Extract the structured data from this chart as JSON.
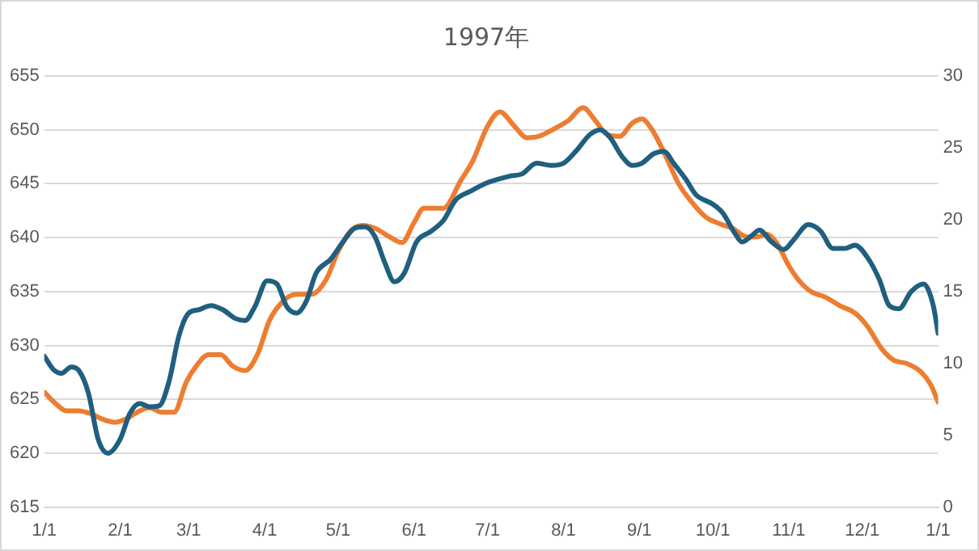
{
  "chart_data": {
    "type": "line",
    "title": "1997年",
    "xlim": [
      "1997-01-01",
      "1998-01-01"
    ],
    "xticks": [
      {
        "value": "1997-01-01",
        "label": "1/1"
      },
      {
        "value": "1997-02-01",
        "label": "2/1"
      },
      {
        "value": "1997-03-01",
        "label": "3/1"
      },
      {
        "value": "1997-04-01",
        "label": "4/1"
      },
      {
        "value": "1997-05-01",
        "label": "5/1"
      },
      {
        "value": "1997-06-01",
        "label": "6/1"
      },
      {
        "value": "1997-07-01",
        "label": "7/1"
      },
      {
        "value": "1997-08-01",
        "label": "8/1"
      },
      {
        "value": "1997-09-01",
        "label": "9/1"
      },
      {
        "value": "1997-10-01",
        "label": "10/1"
      },
      {
        "value": "1997-11-01",
        "label": "11/1"
      },
      {
        "value": "1997-12-01",
        "label": "12/1"
      },
      {
        "value": "1998-01-01",
        "label": "1/1"
      }
    ],
    "ylim": [
      615,
      655
    ],
    "yticks": [
      615,
      620,
      625,
      630,
      635,
      640,
      645,
      650,
      655
    ],
    "y2lim": [
      0,
      30
    ],
    "y2ticks": [
      0,
      5,
      10,
      15,
      20,
      25,
      30
    ],
    "grid": "y",
    "legend": false,
    "marker": "none",
    "line_style": "solid",
    "series": [
      {
        "color": "#1f5f7f",
        "x": [
          "1997-01-01",
          "1997-01-05",
          "1997-01-08",
          "1997-01-12",
          "1997-01-15",
          "1997-01-19",
          "1997-01-23",
          "1997-01-27",
          "1997-02-01",
          "1997-02-05",
          "1997-02-09",
          "1997-02-13",
          "1997-02-17",
          "1997-02-21",
          "1997-02-25",
          "1997-03-01",
          "1997-03-05",
          "1997-03-10",
          "1997-03-15",
          "1997-03-20",
          "1997-03-24",
          "1997-03-28",
          "1997-04-02",
          "1997-04-06",
          "1997-04-10",
          "1997-04-14",
          "1997-04-18",
          "1997-04-22",
          "1997-04-28",
          "1997-05-03",
          "1997-05-08",
          "1997-05-12",
          "1997-05-16",
          "1997-05-20",
          "1997-05-24",
          "1997-05-28",
          "1997-06-02",
          "1997-06-08",
          "1997-06-13",
          "1997-06-18",
          "1997-06-24",
          "1997-07-01",
          "1997-07-05",
          "1997-07-10",
          "1997-07-15",
          "1997-07-21",
          "1997-07-27",
          "1997-08-01",
          "1997-08-06",
          "1997-08-12",
          "1997-08-16",
          "1997-08-20",
          "1997-08-25",
          "1997-08-29",
          "1997-09-02",
          "1997-09-07",
          "1997-09-11",
          "1997-09-15",
          "1997-09-20",
          "1997-09-24",
          "1997-10-01",
          "1997-10-05",
          "1997-10-10",
          "1997-10-13",
          "1997-10-17",
          "1997-10-20",
          "1997-10-25",
          "1997-10-30",
          "1997-11-03",
          "1997-11-09",
          "1997-11-14",
          "1997-11-19",
          "1997-11-24",
          "1997-11-28",
          "1997-12-03",
          "1997-12-08",
          "1997-12-12",
          "1997-12-16",
          "1997-12-21",
          "1997-12-26",
          "1997-12-30",
          "1998-01-01"
        ],
        "values": [
          629.0,
          627.7,
          627.4,
          628.0,
          627.7,
          625.6,
          621.3,
          620.0,
          621.3,
          623.7,
          624.6,
          624.3,
          624.4,
          626.7,
          630.9,
          633.0,
          633.3,
          633.7,
          633.3,
          632.5,
          632.3,
          633.6,
          636.0,
          635.7,
          633.6,
          633.0,
          634.1,
          636.7,
          638.0,
          639.6,
          640.9,
          641.0,
          640.1,
          637.7,
          635.9,
          636.7,
          639.6,
          640.6,
          641.6,
          643.5,
          644.3,
          645.1,
          645.4,
          645.7,
          645.9,
          646.9,
          646.7,
          646.9,
          648.0,
          649.6,
          650.0,
          649.3,
          647.5,
          646.7,
          646.9,
          647.8,
          648.0,
          646.9,
          645.4,
          644.0,
          643.1,
          642.3,
          640.4,
          639.6,
          640.2,
          640.7,
          639.6,
          638.9,
          639.8,
          641.2,
          640.6,
          639.0,
          639.0,
          639.3,
          638.2,
          636.1,
          633.7,
          633.4,
          635.0,
          635.7,
          633.7,
          631.1
        ]
      },
      {
        "color": "#ed7d31",
        "axis": "y2",
        "x": [
          "1997-01-01",
          "1997-01-05",
          "1997-01-10",
          "1997-01-15",
          "1997-01-20",
          "1997-01-25",
          "1997-01-30",
          "1997-02-03",
          "1997-02-09",
          "1997-02-13",
          "1997-02-18",
          "1997-02-23",
          "1997-02-28",
          "1997-03-04",
          "1997-03-09",
          "1997-03-14",
          "1997-03-19",
          "1997-03-24",
          "1997-03-29",
          "1997-04-03",
          "1997-04-09",
          "1997-04-14",
          "1997-04-20",
          "1997-04-26",
          "1997-05-01",
          "1997-05-06",
          "1997-05-11",
          "1997-05-16",
          "1997-05-22",
          "1997-05-27",
          "1997-06-01",
          "1997-06-05",
          "1997-06-09",
          "1997-06-13",
          "1997-06-20",
          "1997-06-25",
          "1997-07-01",
          "1997-07-06",
          "1997-07-12",
          "1997-07-17",
          "1997-07-22",
          "1997-07-28",
          "1997-08-03",
          "1997-08-09",
          "1997-08-14",
          "1997-08-19",
          "1997-08-24",
          "1997-08-29",
          "1997-09-02",
          "1997-09-06",
          "1997-09-11",
          "1997-09-17",
          "1997-09-22",
          "1997-09-28",
          "1997-10-04",
          "1997-10-09",
          "1997-10-15",
          "1997-10-19",
          "1997-10-23",
          "1997-10-27",
          "1997-11-01",
          "1997-11-05",
          "1997-11-10",
          "1997-11-16",
          "1997-11-22",
          "1997-11-28",
          "1997-12-03",
          "1997-12-09",
          "1997-12-14",
          "1997-12-19",
          "1997-12-25",
          "1997-12-29",
          "1998-01-01"
        ],
        "values": [
          8.0,
          7.3,
          6.7,
          6.7,
          6.5,
          6.1,
          5.9,
          6.1,
          6.7,
          6.9,
          6.6,
          6.6,
          8.7,
          9.8,
          10.6,
          10.6,
          9.8,
          9.5,
          10.6,
          13.0,
          14.4,
          14.8,
          14.8,
          15.8,
          17.8,
          19.2,
          19.6,
          19.4,
          18.8,
          18.4,
          19.8,
          20.8,
          20.8,
          20.8,
          22.7,
          24.1,
          26.5,
          27.5,
          26.5,
          25.7,
          25.8,
          26.3,
          26.9,
          27.8,
          26.9,
          25.9,
          25.8,
          26.7,
          27.0,
          26.3,
          24.7,
          22.5,
          21.3,
          20.2,
          19.7,
          19.4,
          18.8,
          18.8,
          19.0,
          18.4,
          16.8,
          15.8,
          15.0,
          14.6,
          14.0,
          13.5,
          12.6,
          11.0,
          10.2,
          10.0,
          9.4,
          8.5,
          7.3
        ]
      }
    ]
  }
}
